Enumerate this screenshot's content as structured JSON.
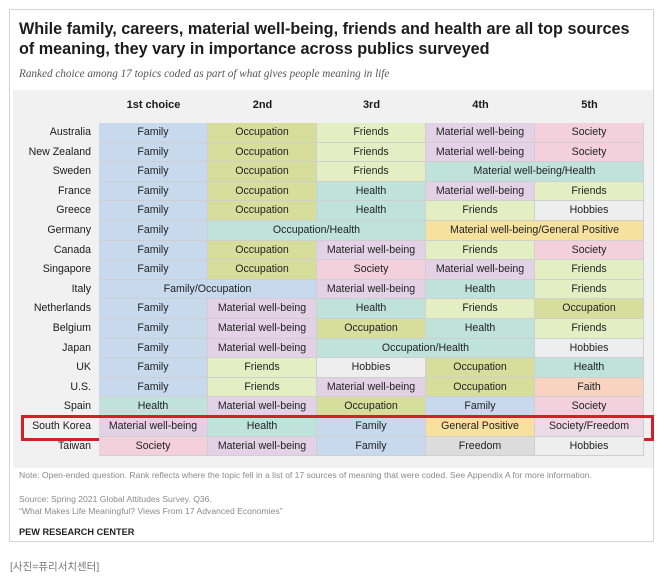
{
  "header": {
    "title": "While family, careers, material well-being, friends and health are all top sources of meaning, they vary in importance across publics surveyed",
    "subtitle": "Ranked choice among 17 topics coded as part of what gives people meaning in life"
  },
  "colors": {
    "Family": "#c8d9ee",
    "Occupation": "#d7de9c",
    "Friends": "#e3efc3",
    "Material well-being": "#e3d2e6",
    "Society": "#f3d0dc",
    "Health": "#bfe3da",
    "Hobbies": "#eeeeee",
    "General Positive": "#f6e19e",
    "Freedom": "#dcdcdc",
    "Faith": "#f8d3c0",
    "Society/Freedom": "#eadbe6",
    "highlight": "#d1202a"
  },
  "chart_data": {
    "type": "table",
    "columns": [
      "1st choice",
      "2nd",
      "3rd",
      "4th",
      "5th"
    ],
    "rows": [
      {
        "country": "Australia",
        "cells": [
          {
            "label": "Family",
            "span": 1,
            "key": "Family"
          },
          {
            "label": "Occupation",
            "span": 1,
            "key": "Occupation"
          },
          {
            "label": "Friends",
            "span": 1,
            "key": "Friends"
          },
          {
            "label": "Material well-being",
            "span": 1,
            "key": "Material well-being"
          },
          {
            "label": "Society",
            "span": 1,
            "key": "Society"
          }
        ]
      },
      {
        "country": "New Zealand",
        "cells": [
          {
            "label": "Family",
            "span": 1,
            "key": "Family"
          },
          {
            "label": "Occupation",
            "span": 1,
            "key": "Occupation"
          },
          {
            "label": "Friends",
            "span": 1,
            "key": "Friends"
          },
          {
            "label": "Material well-being",
            "span": 1,
            "key": "Material well-being"
          },
          {
            "label": "Society",
            "span": 1,
            "key": "Society"
          }
        ]
      },
      {
        "country": "Sweden",
        "cells": [
          {
            "label": "Family",
            "span": 1,
            "key": "Family"
          },
          {
            "label": "Occupation",
            "span": 1,
            "key": "Occupation"
          },
          {
            "label": "Friends",
            "span": 1,
            "key": "Friends"
          },
          {
            "label": "Material well-being/Health",
            "span": 2,
            "key": "Health"
          }
        ]
      },
      {
        "country": "France",
        "cells": [
          {
            "label": "Family",
            "span": 1,
            "key": "Family"
          },
          {
            "label": "Occupation",
            "span": 1,
            "key": "Occupation"
          },
          {
            "label": "Health",
            "span": 1,
            "key": "Health"
          },
          {
            "label": "Material well-being",
            "span": 1,
            "key": "Material well-being"
          },
          {
            "label": "Friends",
            "span": 1,
            "key": "Friends"
          }
        ]
      },
      {
        "country": "Greece",
        "cells": [
          {
            "label": "Family",
            "span": 1,
            "key": "Family"
          },
          {
            "label": "Occupation",
            "span": 1,
            "key": "Occupation"
          },
          {
            "label": "Health",
            "span": 1,
            "key": "Health"
          },
          {
            "label": "Friends",
            "span": 1,
            "key": "Friends"
          },
          {
            "label": "Hobbies",
            "span": 1,
            "key": "Hobbies"
          }
        ]
      },
      {
        "country": "Germany",
        "cells": [
          {
            "label": "Family",
            "span": 1,
            "key": "Family"
          },
          {
            "label": "Occupation/Health",
            "span": 2,
            "key": "Health"
          },
          {
            "label": "Material well-being/General Positive",
            "span": 2,
            "key": "General Positive"
          }
        ]
      },
      {
        "country": "Canada",
        "cells": [
          {
            "label": "Family",
            "span": 1,
            "key": "Family"
          },
          {
            "label": "Occupation",
            "span": 1,
            "key": "Occupation"
          },
          {
            "label": "Material well-being",
            "span": 1,
            "key": "Material well-being"
          },
          {
            "label": "Friends",
            "span": 1,
            "key": "Friends"
          },
          {
            "label": "Society",
            "span": 1,
            "key": "Society"
          }
        ]
      },
      {
        "country": "Singapore",
        "cells": [
          {
            "label": "Family",
            "span": 1,
            "key": "Family"
          },
          {
            "label": "Occupation",
            "span": 1,
            "key": "Occupation"
          },
          {
            "label": "Society",
            "span": 1,
            "key": "Society"
          },
          {
            "label": "Material well-being",
            "span": 1,
            "key": "Material well-being"
          },
          {
            "label": "Friends",
            "span": 1,
            "key": "Friends"
          }
        ]
      },
      {
        "country": "Italy",
        "cells": [
          {
            "label": "Family/Occupation",
            "span": 2,
            "key": "Family"
          },
          {
            "label": "Material well-being",
            "span": 1,
            "key": "Material well-being"
          },
          {
            "label": "Health",
            "span": 1,
            "key": "Health"
          },
          {
            "label": "Friends",
            "span": 1,
            "key": "Friends"
          }
        ]
      },
      {
        "country": "Netherlands",
        "cells": [
          {
            "label": "Family",
            "span": 1,
            "key": "Family"
          },
          {
            "label": "Material well-being",
            "span": 1,
            "key": "Material well-being"
          },
          {
            "label": "Health",
            "span": 1,
            "key": "Health"
          },
          {
            "label": "Friends",
            "span": 1,
            "key": "Friends"
          },
          {
            "label": "Occupation",
            "span": 1,
            "key": "Occupation"
          }
        ]
      },
      {
        "country": "Belgium",
        "cells": [
          {
            "label": "Family",
            "span": 1,
            "key": "Family"
          },
          {
            "label": "Material well-being",
            "span": 1,
            "key": "Material well-being"
          },
          {
            "label": "Occupation",
            "span": 1,
            "key": "Occupation"
          },
          {
            "label": "Health",
            "span": 1,
            "key": "Health"
          },
          {
            "label": "Friends",
            "span": 1,
            "key": "Friends"
          }
        ]
      },
      {
        "country": "Japan",
        "cells": [
          {
            "label": "Family",
            "span": 1,
            "key": "Family"
          },
          {
            "label": "Material well-being",
            "span": 1,
            "key": "Material well-being"
          },
          {
            "label": "Occupation/Health",
            "span": 2,
            "key": "Health"
          },
          {
            "label": "Hobbies",
            "span": 1,
            "key": "Hobbies"
          }
        ]
      },
      {
        "country": "UK",
        "cells": [
          {
            "label": "Family",
            "span": 1,
            "key": "Family"
          },
          {
            "label": "Friends",
            "span": 1,
            "key": "Friends"
          },
          {
            "label": "Hobbies",
            "span": 1,
            "key": "Hobbies"
          },
          {
            "label": "Occupation",
            "span": 1,
            "key": "Occupation"
          },
          {
            "label": "Health",
            "span": 1,
            "key": "Health"
          }
        ]
      },
      {
        "country": "U.S.",
        "cells": [
          {
            "label": "Family",
            "span": 1,
            "key": "Family"
          },
          {
            "label": "Friends",
            "span": 1,
            "key": "Friends"
          },
          {
            "label": "Material well-being",
            "span": 1,
            "key": "Material well-being"
          },
          {
            "label": "Occupation",
            "span": 1,
            "key": "Occupation"
          },
          {
            "label": "Faith",
            "span": 1,
            "key": "Faith"
          }
        ]
      },
      {
        "country": "Spain",
        "cells": [
          {
            "label": "Health",
            "span": 1,
            "key": "Health"
          },
          {
            "label": "Material well-being",
            "span": 1,
            "key": "Material well-being"
          },
          {
            "label": "Occupation",
            "span": 1,
            "key": "Occupation"
          },
          {
            "label": "Family",
            "span": 1,
            "key": "Family"
          },
          {
            "label": "Society",
            "span": 1,
            "key": "Society"
          }
        ]
      },
      {
        "country": "South Korea",
        "highlight": true,
        "cells": [
          {
            "label": "Material well-being",
            "span": 1,
            "key": "Material well-being"
          },
          {
            "label": "Health",
            "span": 1,
            "key": "Health"
          },
          {
            "label": "Family",
            "span": 1,
            "key": "Family"
          },
          {
            "label": "General Positive",
            "span": 1,
            "key": "General Positive"
          },
          {
            "label": "Society/Freedom",
            "span": 1,
            "key": "Society/Freedom"
          }
        ]
      },
      {
        "country": "Taiwan",
        "cells": [
          {
            "label": "Society",
            "span": 1,
            "key": "Society"
          },
          {
            "label": "Material well-being",
            "span": 1,
            "key": "Material well-being"
          },
          {
            "label": "Family",
            "span": 1,
            "key": "Family"
          },
          {
            "label": "Freedom",
            "span": 1,
            "key": "Freedom"
          },
          {
            "label": "Hobbies",
            "span": 1,
            "key": "Hobbies"
          }
        ]
      }
    ]
  },
  "notes": {
    "note": "Note: Open-ended question. Rank reflects where the topic fell in a list of 17 sources of meaning that were coded. See Appendix A for more information.",
    "source": "Source: Spring 2021 Global Attitudes Survey. Q36.",
    "report": "“What Makes Life Meaningful? Views From 17 Advanced Economies”",
    "brand": "PEW RESEARCH CENTER"
  },
  "photo_caption": "[사진=퓨리서치센터]"
}
